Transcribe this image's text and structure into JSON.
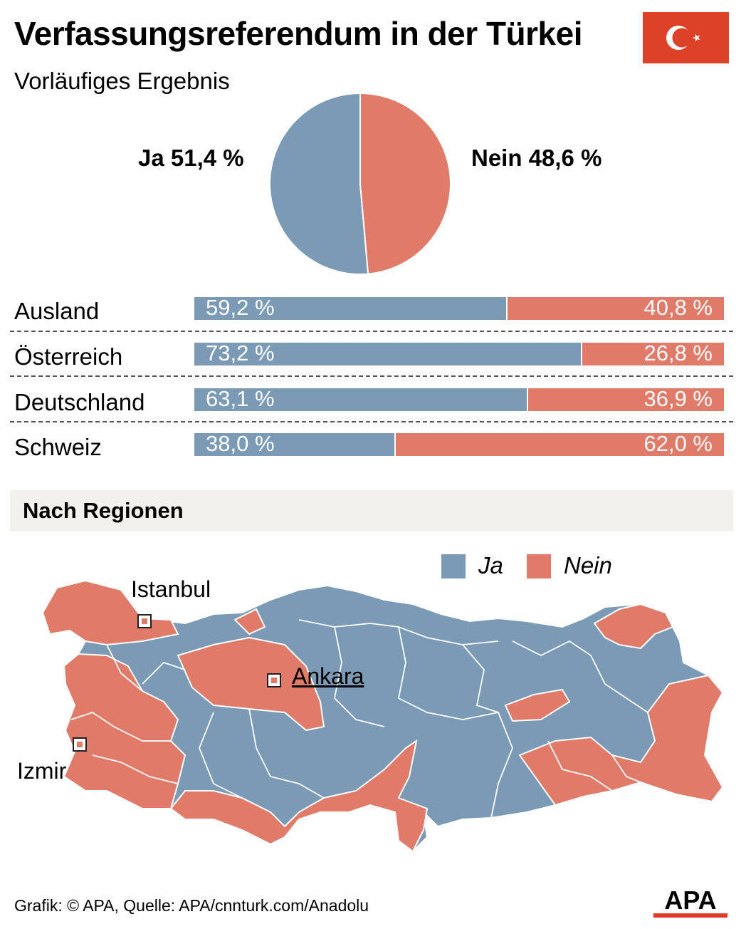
{
  "title": "Verfassungsreferendum in der Türkei",
  "subtitle": "Vorläufiges Ergebnis",
  "flag_icon": "turkish-flag",
  "colors": {
    "ja": "#7a9ab5",
    "nein": "#e07a69",
    "flag": "#dd4128"
  },
  "chart_data": [
    {
      "type": "pie",
      "labels": [
        "Ja",
        "Nein"
      ],
      "values": [
        51.4,
        48.6
      ],
      "value_labels": [
        "Ja 51,4 %",
        "Nein 48,6 %"
      ]
    },
    {
      "type": "bar",
      "stacked": true,
      "orientation": "horizontal",
      "categories": [
        "Ausland",
        "Österreich",
        "Deutschland",
        "Schweiz"
      ],
      "series": [
        {
          "name": "Ja",
          "values": [
            59.2,
            73.2,
            63.1,
            38.0
          ],
          "labels": [
            "59,2 %",
            "73,2 %",
            "63,1 %",
            "38,0 %"
          ]
        },
        {
          "name": "Nein",
          "values": [
            40.8,
            26.8,
            36.9,
            62.0
          ],
          "labels": [
            "40,8 %",
            "26,8 %",
            "36,9 %",
            "62,0 %"
          ]
        }
      ]
    }
  ],
  "section_title": "Nach Regionen",
  "legend": {
    "ja": "Ja",
    "nein": "Nein"
  },
  "cities": {
    "istanbul": "Istanbul",
    "ankara": "Ankara",
    "izmir": "Izmir"
  },
  "footer": "Grafik: © APA, Quelle: APA/cnnturk.com/Anadolu",
  "logo_text": "APA"
}
